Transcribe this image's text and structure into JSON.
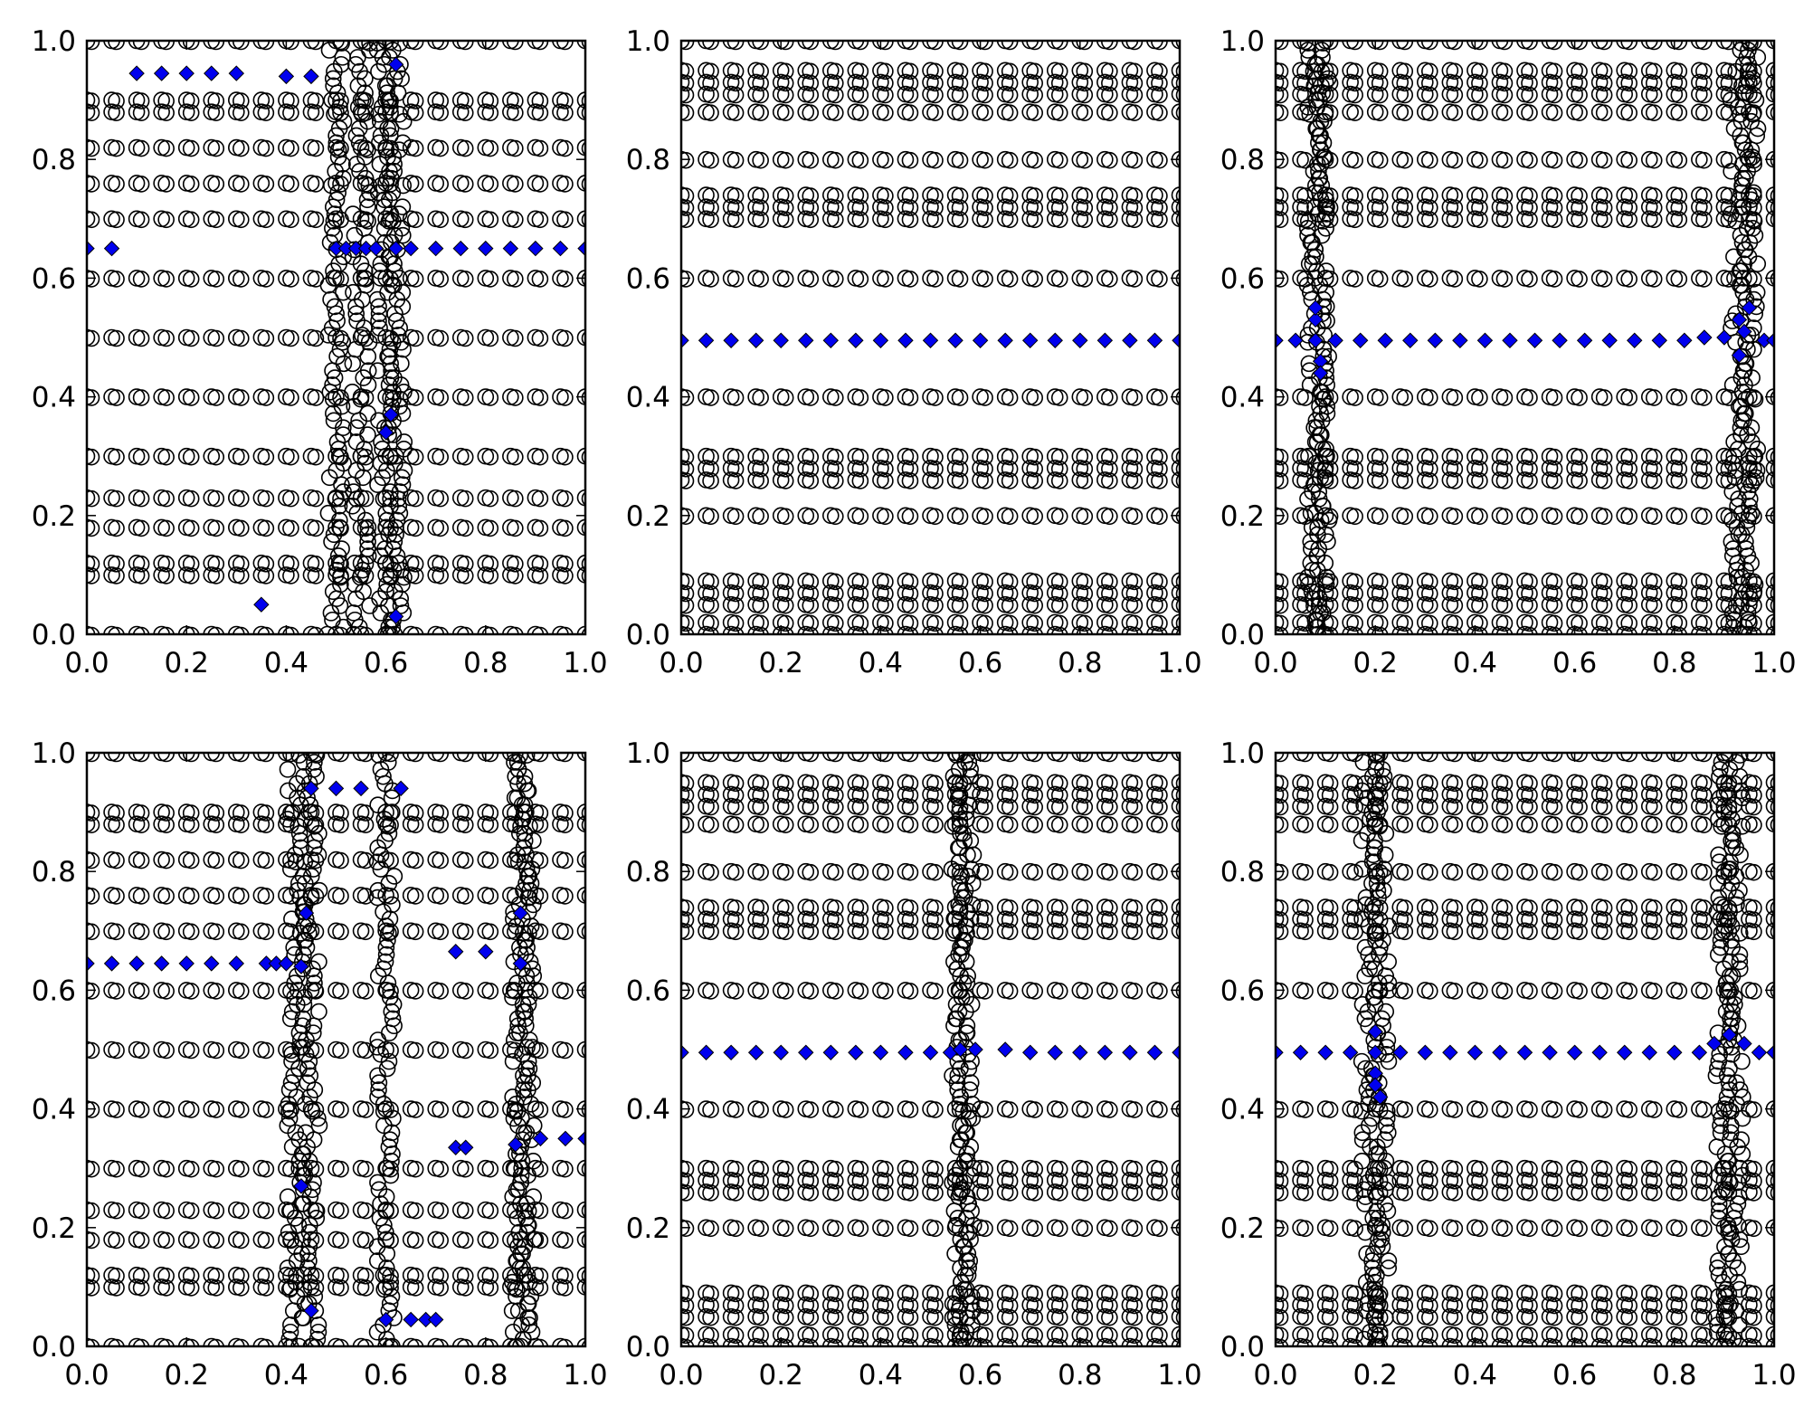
{
  "figure": {
    "rows": 2,
    "cols": 3
  },
  "colors": {
    "circle_edge": "#000000",
    "diamond_fill": "#0000ee",
    "diamond_edge": "#000000",
    "axes": "#000000"
  },
  "chart_data": [
    {
      "type": "scatter",
      "title": "",
      "xlabel": "",
      "ylabel": "",
      "xlim": [
        0,
        1
      ],
      "ylim": [
        0,
        1
      ],
      "xticks": [
        "0.0",
        "0.2",
        "0.4",
        "0.6",
        "0.8",
        "1.0"
      ],
      "yticks": [
        "0.0",
        "0.2",
        "0.4",
        "0.6",
        "0.8",
        "1.0"
      ],
      "circle_rows": [
        0.0,
        0.1,
        0.12,
        0.18,
        0.23,
        0.3,
        0.4,
        0.5,
        0.6,
        0.7,
        0.76,
        0.82,
        0.88,
        0.9,
        1.0
      ],
      "circle_dense_columns": [
        0.5,
        0.55,
        0.6,
        0.62
      ],
      "markers_diamond": {
        "name": "diamond series",
        "points": [
          [
            0.1,
            0.945
          ],
          [
            0.15,
            0.945
          ],
          [
            0.2,
            0.945
          ],
          [
            0.25,
            0.945
          ],
          [
            0.3,
            0.945
          ],
          [
            0.4,
            0.94
          ],
          [
            0.45,
            0.94
          ],
          [
            0.62,
            0.96
          ],
          [
            0.0,
            0.65
          ],
          [
            0.05,
            0.65
          ],
          [
            0.5,
            0.65
          ],
          [
            0.52,
            0.65
          ],
          [
            0.54,
            0.65
          ],
          [
            0.56,
            0.65
          ],
          [
            0.58,
            0.65
          ],
          [
            0.62,
            0.65
          ],
          [
            0.65,
            0.65
          ],
          [
            0.7,
            0.65
          ],
          [
            0.75,
            0.65
          ],
          [
            0.8,
            0.65
          ],
          [
            0.85,
            0.65
          ],
          [
            0.9,
            0.65
          ],
          [
            0.95,
            0.65
          ],
          [
            1.0,
            0.65
          ],
          [
            0.61,
            0.37
          ],
          [
            0.6,
            0.34
          ],
          [
            0.35,
            0.05
          ],
          [
            0.62,
            0.03
          ]
        ]
      }
    },
    {
      "type": "scatter",
      "title": "",
      "xlabel": "",
      "ylabel": "",
      "xlim": [
        0,
        1
      ],
      "ylim": [
        0,
        1
      ],
      "xticks": [
        "0.0",
        "0.2",
        "0.4",
        "0.6",
        "0.8",
        "1.0"
      ],
      "yticks": [
        "0.0",
        "0.2",
        "0.4",
        "0.6",
        "0.8",
        "1.0"
      ],
      "circle_rows": [
        0.0,
        0.02,
        0.05,
        0.07,
        0.09,
        0.2,
        0.26,
        0.28,
        0.3,
        0.4,
        0.6,
        0.7,
        0.72,
        0.74,
        0.8,
        0.88,
        0.91,
        0.93,
        0.95,
        1.0
      ],
      "circle_dense_columns": [],
      "markers_diamond": {
        "name": "diamond series",
        "points": [
          [
            0.0,
            0.495
          ],
          [
            0.05,
            0.495
          ],
          [
            0.1,
            0.495
          ],
          [
            0.15,
            0.495
          ],
          [
            0.2,
            0.495
          ],
          [
            0.25,
            0.495
          ],
          [
            0.3,
            0.495
          ],
          [
            0.35,
            0.495
          ],
          [
            0.4,
            0.495
          ],
          [
            0.45,
            0.495
          ],
          [
            0.5,
            0.495
          ],
          [
            0.55,
            0.495
          ],
          [
            0.6,
            0.495
          ],
          [
            0.65,
            0.495
          ],
          [
            0.7,
            0.495
          ],
          [
            0.75,
            0.495
          ],
          [
            0.8,
            0.495
          ],
          [
            0.85,
            0.495
          ],
          [
            0.9,
            0.495
          ],
          [
            0.95,
            0.495
          ],
          [
            1.0,
            0.495
          ]
        ]
      }
    },
    {
      "type": "scatter",
      "title": "",
      "xlabel": "",
      "ylabel": "",
      "xlim": [
        0,
        1
      ],
      "ylim": [
        0,
        1
      ],
      "xticks": [
        "0.0",
        "0.2",
        "0.4",
        "0.6",
        "0.8",
        "1.0"
      ],
      "yticks": [
        "0.0",
        "0.2",
        "0.4",
        "0.6",
        "0.8",
        "1.0"
      ],
      "circle_rows": [
        0.0,
        0.02,
        0.05,
        0.07,
        0.09,
        0.2,
        0.26,
        0.28,
        0.3,
        0.4,
        0.6,
        0.7,
        0.72,
        0.74,
        0.8,
        0.88,
        0.91,
        0.93,
        0.95,
        1.0
      ],
      "circle_dense_columns": [
        0.08,
        0.09,
        0.93,
        0.95
      ],
      "markers_diamond": {
        "name": "diamond series",
        "points": [
          [
            0.0,
            0.495
          ],
          [
            0.04,
            0.495
          ],
          [
            0.08,
            0.495
          ],
          [
            0.12,
            0.495
          ],
          [
            0.17,
            0.495
          ],
          [
            0.22,
            0.495
          ],
          [
            0.27,
            0.495
          ],
          [
            0.32,
            0.495
          ],
          [
            0.37,
            0.495
          ],
          [
            0.42,
            0.495
          ],
          [
            0.47,
            0.495
          ],
          [
            0.52,
            0.495
          ],
          [
            0.57,
            0.495
          ],
          [
            0.62,
            0.495
          ],
          [
            0.67,
            0.495
          ],
          [
            0.72,
            0.495
          ],
          [
            0.77,
            0.495
          ],
          [
            0.82,
            0.495
          ],
          [
            0.86,
            0.5
          ],
          [
            0.9,
            0.5
          ],
          [
            0.94,
            0.51
          ],
          [
            0.98,
            0.495
          ],
          [
            1.0,
            0.495
          ],
          [
            0.08,
            0.53
          ],
          [
            0.08,
            0.55
          ],
          [
            0.09,
            0.46
          ],
          [
            0.09,
            0.44
          ],
          [
            0.93,
            0.53
          ],
          [
            0.95,
            0.55
          ],
          [
            0.93,
            0.47
          ]
        ]
      }
    },
    {
      "type": "scatter",
      "title": "",
      "xlabel": "",
      "ylabel": "",
      "xlim": [
        0,
        1
      ],
      "ylim": [
        0,
        1
      ],
      "xticks": [
        "0.0",
        "0.2",
        "0.4",
        "0.6",
        "0.8",
        "1.0"
      ],
      "yticks": [
        "0.0",
        "0.2",
        "0.4",
        "0.6",
        "0.8",
        "1.0"
      ],
      "circle_rows": [
        0.0,
        0.1,
        0.12,
        0.18,
        0.23,
        0.3,
        0.4,
        0.5,
        0.6,
        0.7,
        0.76,
        0.82,
        0.88,
        0.9,
        1.0
      ],
      "circle_dense_columns": [
        0.42,
        0.45,
        0.6,
        0.87,
        0.88
      ],
      "markers_diamond": {
        "name": "diamond series",
        "points": [
          [
            0.45,
            0.94
          ],
          [
            0.5,
            0.94
          ],
          [
            0.55,
            0.94
          ],
          [
            0.63,
            0.94
          ],
          [
            0.44,
            0.73
          ],
          [
            0.74,
            0.665
          ],
          [
            0.8,
            0.665
          ],
          [
            0.87,
            0.73
          ],
          [
            0.0,
            0.645
          ],
          [
            0.05,
            0.645
          ],
          [
            0.1,
            0.645
          ],
          [
            0.15,
            0.645
          ],
          [
            0.2,
            0.645
          ],
          [
            0.25,
            0.645
          ],
          [
            0.3,
            0.645
          ],
          [
            0.36,
            0.645
          ],
          [
            0.38,
            0.645
          ],
          [
            0.4,
            0.645
          ],
          [
            0.43,
            0.64
          ],
          [
            0.87,
            0.645
          ],
          [
            0.91,
            0.35
          ],
          [
            0.96,
            0.35
          ],
          [
            1.0,
            0.35
          ],
          [
            0.86,
            0.34
          ],
          [
            0.74,
            0.335
          ],
          [
            0.76,
            0.335
          ],
          [
            0.43,
            0.27
          ],
          [
            0.45,
            0.06
          ],
          [
            0.6,
            0.045
          ],
          [
            0.65,
            0.045
          ],
          [
            0.68,
            0.045
          ],
          [
            0.7,
            0.045
          ]
        ]
      }
    },
    {
      "type": "scatter",
      "title": "",
      "xlabel": "",
      "ylabel": "",
      "xlim": [
        0,
        1
      ],
      "ylim": [
        0,
        1
      ],
      "xticks": [
        "0.0",
        "0.2",
        "0.4",
        "0.6",
        "0.8",
        "1.0"
      ],
      "yticks": [
        "0.0",
        "0.2",
        "0.4",
        "0.6",
        "0.8",
        "1.0"
      ],
      "circle_rows": [
        0.0,
        0.02,
        0.05,
        0.07,
        0.09,
        0.2,
        0.26,
        0.28,
        0.3,
        0.4,
        0.6,
        0.7,
        0.72,
        0.74,
        0.8,
        0.88,
        0.91,
        0.93,
        0.95,
        1.0
      ],
      "circle_dense_columns": [
        0.56,
        0.57
      ],
      "markers_diamond": {
        "name": "diamond series",
        "points": [
          [
            0.0,
            0.495
          ],
          [
            0.05,
            0.495
          ],
          [
            0.1,
            0.495
          ],
          [
            0.15,
            0.495
          ],
          [
            0.2,
            0.495
          ],
          [
            0.25,
            0.495
          ],
          [
            0.3,
            0.495
          ],
          [
            0.35,
            0.495
          ],
          [
            0.4,
            0.495
          ],
          [
            0.45,
            0.495
          ],
          [
            0.5,
            0.495
          ],
          [
            0.54,
            0.495
          ],
          [
            0.56,
            0.5
          ],
          [
            0.59,
            0.5
          ],
          [
            0.65,
            0.5
          ],
          [
            0.7,
            0.495
          ],
          [
            0.75,
            0.495
          ],
          [
            0.8,
            0.495
          ],
          [
            0.85,
            0.495
          ],
          [
            0.9,
            0.495
          ],
          [
            0.95,
            0.495
          ],
          [
            1.0,
            0.495
          ]
        ]
      }
    },
    {
      "type": "scatter",
      "title": "",
      "xlabel": "",
      "ylabel": "",
      "xlim": [
        0,
        1
      ],
      "ylim": [
        0,
        1
      ],
      "xticks": [
        "0.0",
        "0.2",
        "0.4",
        "0.6",
        "0.8",
        "1.0"
      ],
      "yticks": [
        "0.0",
        "0.2",
        "0.4",
        "0.6",
        "0.8",
        "1.0"
      ],
      "circle_rows": [
        0.0,
        0.02,
        0.05,
        0.07,
        0.09,
        0.2,
        0.26,
        0.28,
        0.3,
        0.4,
        0.6,
        0.7,
        0.72,
        0.74,
        0.8,
        0.88,
        0.91,
        0.93,
        0.95,
        1.0
      ],
      "circle_dense_columns": [
        0.19,
        0.21,
        0.9,
        0.92
      ],
      "markers_diamond": {
        "name": "diamond series",
        "points": [
          [
            0.0,
            0.495
          ],
          [
            0.05,
            0.495
          ],
          [
            0.1,
            0.495
          ],
          [
            0.15,
            0.495
          ],
          [
            0.2,
            0.495
          ],
          [
            0.25,
            0.495
          ],
          [
            0.3,
            0.495
          ],
          [
            0.35,
            0.495
          ],
          [
            0.4,
            0.495
          ],
          [
            0.45,
            0.495
          ],
          [
            0.5,
            0.495
          ],
          [
            0.55,
            0.495
          ],
          [
            0.6,
            0.495
          ],
          [
            0.65,
            0.495
          ],
          [
            0.7,
            0.495
          ],
          [
            0.75,
            0.495
          ],
          [
            0.8,
            0.495
          ],
          [
            0.85,
            0.495
          ],
          [
            0.88,
            0.51
          ],
          [
            0.91,
            0.525
          ],
          [
            0.94,
            0.51
          ],
          [
            0.97,
            0.495
          ],
          [
            1.0,
            0.495
          ],
          [
            0.2,
            0.53
          ],
          [
            0.2,
            0.46
          ],
          [
            0.2,
            0.44
          ],
          [
            0.21,
            0.42
          ]
        ]
      }
    }
  ]
}
